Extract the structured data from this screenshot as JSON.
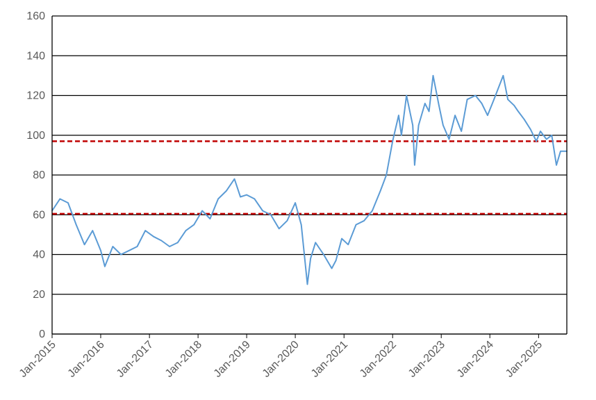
{
  "chart_data": {
    "type": "line",
    "title": "",
    "xlabel": "",
    "ylabel": "",
    "xlim": [
      "2015-01-01",
      "2025-08-01"
    ],
    "ylim": [
      0,
      160
    ],
    "y_ticks": [
      0,
      20,
      40,
      60,
      80,
      100,
      120,
      140,
      160
    ],
    "x_ticks": [
      "Jan-2015",
      "Jan-2016",
      "Jan-2017",
      "Jan-2018",
      "Jan-2019",
      "Jan-2020",
      "Jan-2021",
      "Jan-2022",
      "Jan-2023",
      "Jan-2024",
      "Jan-2025"
    ],
    "grid": "horizontal",
    "legend": "none",
    "series": [
      {
        "color": "#5B9BD5",
        "x": [
          "2015-01-01",
          "2015-03-01",
          "2015-05-01",
          "2015-07-01",
          "2015-09-01",
          "2015-11-01",
          "2016-01-01",
          "2016-02-01",
          "2016-04-01",
          "2016-06-01",
          "2016-08-01",
          "2016-10-01",
          "2016-12-01",
          "2017-02-01",
          "2017-04-01",
          "2017-06-01",
          "2017-08-01",
          "2017-10-01",
          "2017-12-01",
          "2018-02-01",
          "2018-04-01",
          "2018-06-01",
          "2018-08-01",
          "2018-10-01",
          "2018-11-15",
          "2019-01-01",
          "2019-03-01",
          "2019-05-01",
          "2019-07-01",
          "2019-09-01",
          "2019-11-01",
          "2020-01-01",
          "2020-02-15",
          "2020-04-01",
          "2020-04-25",
          "2020-06-01",
          "2020-08-01",
          "2020-10-01",
          "2020-11-01",
          "2020-12-15",
          "2021-02-01",
          "2021-04-01",
          "2021-06-01",
          "2021-08-01",
          "2021-10-01",
          "2021-11-15",
          "2022-01-01",
          "2022-02-15",
          "2022-03-08",
          "2022-04-15",
          "2022-06-01",
          "2022-06-15",
          "2022-07-15",
          "2022-09-01",
          "2022-10-01",
          "2022-11-01",
          "2022-12-15",
          "2023-01-15",
          "2023-03-01",
          "2023-04-15",
          "2023-06-01",
          "2023-07-15",
          "2023-09-15",
          "2023-11-01",
          "2023-12-15",
          "2024-02-01",
          "2024-04-10",
          "2024-05-15",
          "2024-07-01",
          "2024-08-01",
          "2024-09-15",
          "2024-11-01",
          "2024-12-15",
          "2025-01-15",
          "2025-03-01",
          "2025-04-10",
          "2025-05-15",
          "2025-06-15",
          "2025-08-01"
        ],
        "y": [
          62,
          68,
          66,
          55,
          45,
          52,
          42,
          34,
          44,
          40,
          42,
          44,
          52,
          49,
          47,
          44,
          46,
          52,
          55,
          62,
          58,
          68,
          72,
          78,
          69,
          70,
          68,
          62,
          60,
          53,
          57,
          66,
          55,
          25,
          38,
          46,
          40,
          33,
          37,
          48,
          45,
          55,
          57,
          62,
          72,
          80,
          97,
          110,
          100,
          120,
          105,
          85,
          105,
          116,
          112,
          130,
          115,
          105,
          98,
          110,
          102,
          118,
          120,
          116,
          110,
          118,
          130,
          118,
          115,
          112,
          108,
          103,
          97,
          102,
          98,
          100,
          85,
          92,
          92
        ]
      }
    ],
    "reference_lines": [
      {
        "y": 97,
        "color": "#C00000",
        "style": "dashed"
      },
      {
        "y": 60.5,
        "color": "#C00000",
        "style": "dashed"
      }
    ]
  }
}
